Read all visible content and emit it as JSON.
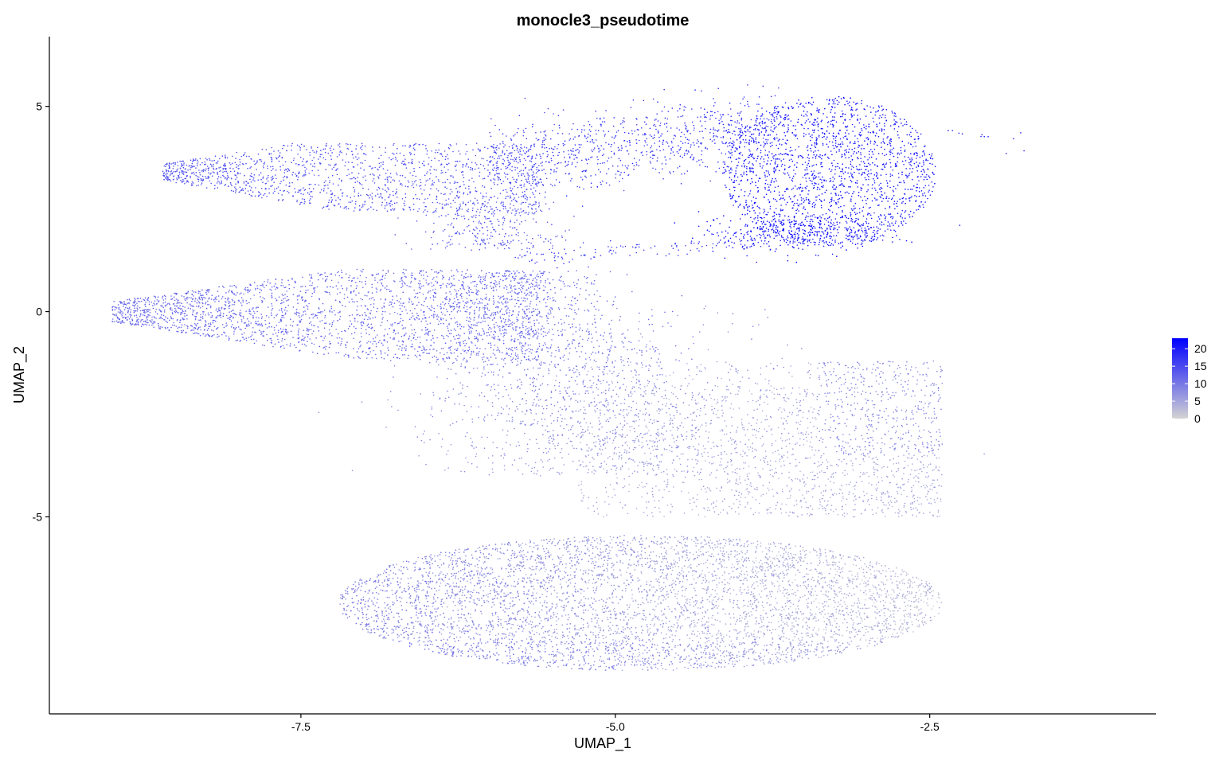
{
  "chart_data": {
    "type": "scatter",
    "title": "monocle3_pseudotime",
    "xlabel": "UMAP_1",
    "ylabel": "UMAP_2",
    "xlim": [
      -9.5,
      -0.7
    ],
    "ylim": [
      -9.8,
      6.7
    ],
    "x_ticks": [
      -7.5,
      -5.0,
      -2.5
    ],
    "x_tick_labels": [
      "-7.5",
      "-5.0",
      "-2.5"
    ],
    "y_ticks": [
      -5,
      0,
      5
    ],
    "y_tick_labels": [
      "-5",
      "0",
      "5"
    ],
    "grid": false,
    "legend": {
      "placement": "right",
      "type": "colorbar",
      "min": 0,
      "max": 23,
      "ticks": [
        0,
        5,
        10,
        15,
        20
      ],
      "tick_labels": [
        "0",
        "5",
        "10",
        "15",
        "20"
      ],
      "color_low": "#d3d3d3",
      "color_high": "#0000ff"
    },
    "clusters": [
      {
        "region": "upper-left band",
        "x_range": [
          -8.6,
          -5.7
        ],
        "y_range": [
          2.3,
          4.1
        ],
        "pseudotime": 14
      },
      {
        "region": "upper bridge",
        "x_range": [
          -6.2,
          -3.9
        ],
        "y_range": [
          2.0,
          5.0
        ],
        "pseudotime": 15
      },
      {
        "region": "upper-right cluster",
        "x_range": [
          -4.2,
          -2.4
        ],
        "y_range": [
          1.5,
          5.3
        ],
        "pseudotime": 21
      },
      {
        "region": "middle-left band",
        "x_range": [
          -9.0,
          -5.7
        ],
        "y_range": [
          -1.2,
          1.2
        ],
        "pseudotime": 12
      },
      {
        "region": "central stem",
        "x_range": [
          -6.0,
          -4.4
        ],
        "y_range": [
          -4.0,
          1.0
        ],
        "pseudotime": 9
      },
      {
        "region": "lower-middle cloud",
        "x_range": [
          -5.5,
          -2.5
        ],
        "y_range": [
          -5.0,
          -1.2
        ],
        "pseudotime": 5
      },
      {
        "region": "lower-left cluster",
        "x_range": [
          -7.0,
          -4.5
        ],
        "y_range": [
          -8.8,
          -5.5
        ],
        "pseudotime": 8
      },
      {
        "region": "lower-right cluster",
        "x_range": [
          -4.5,
          -2.4
        ],
        "y_range": [
          -8.5,
          -5.0
        ],
        "pseudotime": 2
      }
    ]
  }
}
